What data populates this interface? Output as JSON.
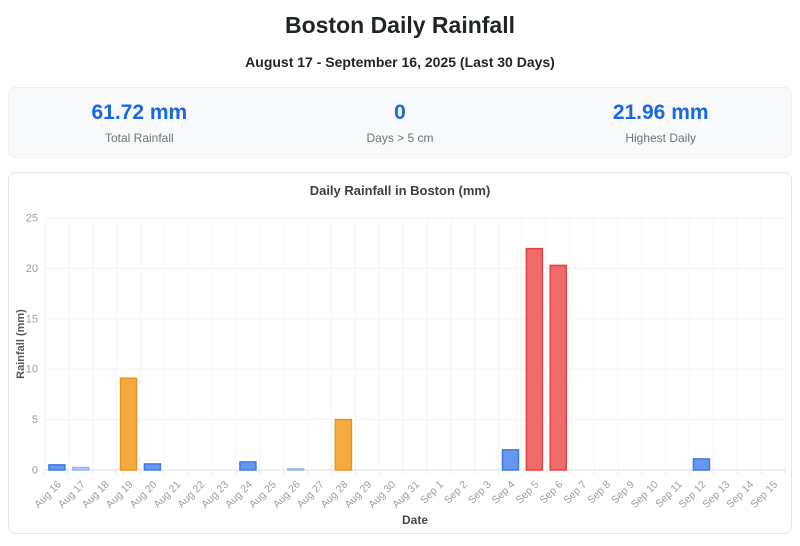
{
  "header": {
    "title": "Boston Daily Rainfall",
    "subtitle": "August 17 - September 16, 2025 (Last 30 Days)"
  },
  "stats": [
    {
      "value": "61.72 mm",
      "label": "Total Rainfall"
    },
    {
      "value": "0",
      "label": "Days > 5 cm"
    },
    {
      "value": "21.96 mm",
      "label": "Highest Daily"
    }
  ],
  "colors": {
    "stat_value": "#1a66e3",
    "stat_label": "#6c757d",
    "grid_line": "#f1f3f5",
    "zero_line": "#dfe3e7",
    "tick_text": "#9aa0a6"
  },
  "chart_data": {
    "type": "bar",
    "title": "Daily Rainfall in Boston (mm)",
    "xlabel": "Date",
    "ylabel": "Rainfall (mm)",
    "ylim": [
      0,
      25
    ],
    "yticks": [
      0,
      5,
      10,
      15,
      20,
      25
    ],
    "grid": true,
    "legend": false,
    "categories": [
      "Aug 16",
      "Aug 17",
      "Aug 18",
      "Aug 19",
      "Aug 20",
      "Aug 21",
      "Aug 22",
      "Aug 23",
      "Aug 24",
      "Aug 25",
      "Aug 26",
      "Aug 27",
      "Aug 28",
      "Aug 29",
      "Aug 30",
      "Aug 31",
      "Sep 1",
      "Sep 2",
      "Sep 3",
      "Sep 4",
      "Sep 5",
      "Sep 6",
      "Sep 7",
      "Sep 8",
      "Sep 9",
      "Sep 10",
      "Sep 11",
      "Sep 12",
      "Sep 13",
      "Sep 14",
      "Sep 15"
    ],
    "values": [
      0.51,
      0.25,
      0,
      9.1,
      0.6,
      0,
      0,
      0,
      0.8,
      0,
      0.1,
      0,
      5,
      0,
      0,
      0,
      0,
      0,
      0,
      2,
      21.96,
      20.3,
      0,
      0,
      0,
      0,
      0,
      1.1,
      0,
      0,
      0
    ],
    "bar_colors": [
      "blue",
      "light_blue",
      null,
      "orange",
      "blue",
      null,
      null,
      null,
      "blue",
      null,
      "light_blue",
      null,
      "orange",
      null,
      null,
      null,
      null,
      null,
      null,
      "blue",
      "red",
      "red",
      null,
      null,
      null,
      null,
      null,
      "blue",
      null,
      null,
      null
    ],
    "palette": {
      "blue": {
        "fill": "#6498f2",
        "border": "#3f79e0"
      },
      "light_blue": {
        "fill": "#bfd0f7",
        "border": "#96b4f2"
      },
      "orange": {
        "fill": "#f6ab42",
        "border": "#ec921a"
      },
      "red": {
        "fill": "#ef6a68",
        "border": "#e44341"
      }
    }
  }
}
